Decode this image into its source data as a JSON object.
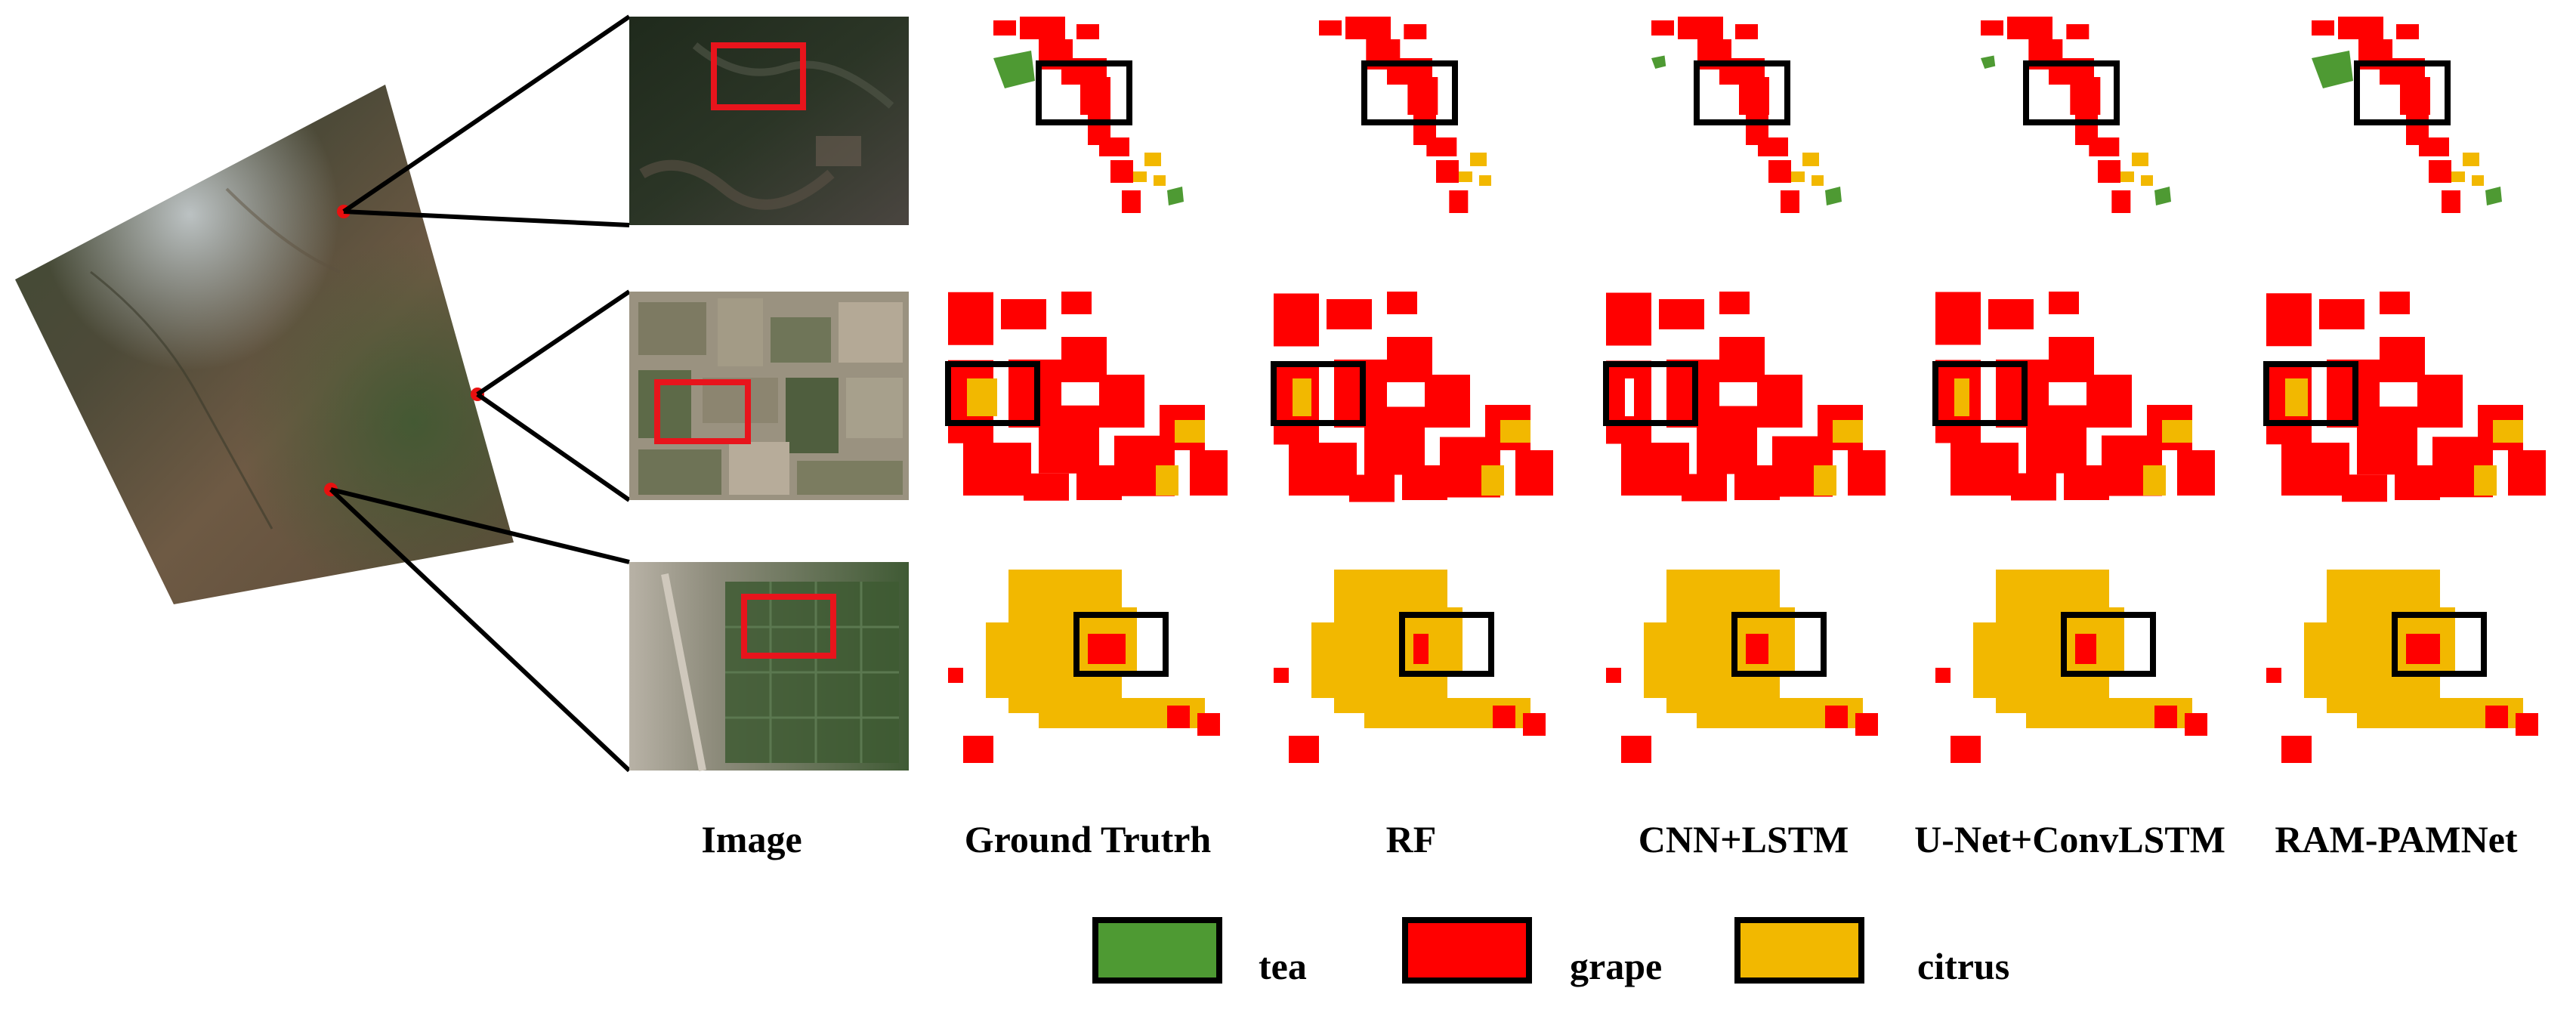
{
  "columns": {
    "image": "Image",
    "ground_truth": "Ground Trutrh",
    "rf": "RF",
    "cnn_lstm": "CNN+LSTM",
    "unet_convlstm": "U-Net+ConvLSTM",
    "ram_pamnet": "RAM-PAMNet"
  },
  "legend": [
    {
      "label": "tea",
      "color": "#4e9a33"
    },
    {
      "label": "grape",
      "color": "#ff0000"
    },
    {
      "label": "citrus",
      "color": "#f2b800"
    }
  ],
  "colors": {
    "tea": "#4e9a33",
    "grape": "#ff0000",
    "citrus": "#f2b800",
    "zoom_box_image": "#e8141c",
    "zoom_box_map": "#000000",
    "location_dot": "#e81010"
  }
}
